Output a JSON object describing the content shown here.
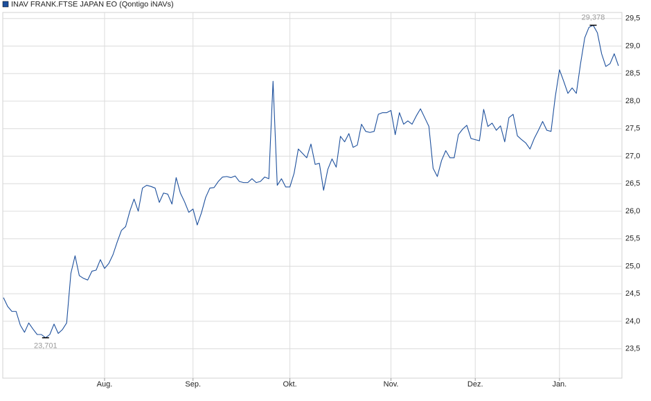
{
  "chart_data": {
    "type": "line",
    "categories": [
      null,
      null,
      null,
      null,
      null,
      null,
      null,
      null,
      null,
      null,
      null,
      null,
      null,
      null,
      null,
      null,
      null,
      null,
      null,
      null,
      null,
      null,
      null,
      null,
      "Aug.",
      null,
      null,
      null,
      null,
      null,
      null,
      null,
      null,
      null,
      null,
      null,
      null,
      null,
      null,
      null,
      null,
      null,
      null,
      null,
      null,
      "Sep.",
      null,
      null,
      null,
      null,
      null,
      null,
      null,
      null,
      null,
      null,
      null,
      null,
      null,
      null,
      null,
      null,
      null,
      null,
      null,
      null,
      null,
      null,
      "Okt.",
      null,
      null,
      null,
      null,
      null,
      null,
      null,
      null,
      null,
      null,
      null,
      null,
      null,
      null,
      null,
      null,
      null,
      null,
      null,
      null,
      null,
      null,
      null,
      "Nov.",
      null,
      null,
      null,
      null,
      null,
      null,
      null,
      null,
      null,
      null,
      null,
      null,
      null,
      null,
      null,
      null,
      null,
      null,
      null,
      "Dez.",
      null,
      null,
      null,
      null,
      null,
      null,
      null,
      null,
      null,
      null,
      null,
      null,
      null,
      null,
      null,
      null,
      null,
      null,
      null,
      "Jan.",
      null,
      null,
      null,
      null,
      null,
      null,
      null,
      null,
      null,
      null,
      null,
      null,
      null,
      null
    ],
    "series": [
      {
        "name": "INAV FRANK.FTSE JAPAN EO (Qontigo iNAVs)",
        "color": "#1c4f9c",
        "values": [
          24.43,
          24.27,
          24.18,
          24.18,
          23.93,
          23.8,
          23.97,
          23.86,
          23.76,
          23.76,
          23.701,
          23.76,
          23.95,
          23.78,
          23.85,
          23.97,
          24.87,
          25.19,
          24.83,
          24.78,
          24.75,
          24.91,
          24.93,
          25.12,
          24.96,
          25.05,
          25.21,
          25.44,
          25.65,
          25.72,
          26.0,
          26.22,
          26.0,
          26.42,
          26.47,
          26.45,
          26.42,
          26.16,
          26.33,
          26.31,
          26.13,
          26.61,
          26.33,
          26.17,
          25.98,
          26.04,
          25.75,
          25.97,
          26.25,
          26.42,
          26.43,
          26.54,
          26.62,
          26.63,
          26.61,
          26.64,
          26.54,
          26.52,
          26.52,
          26.59,
          26.52,
          26.54,
          26.62,
          26.59,
          28.36,
          26.47,
          26.59,
          26.44,
          26.44,
          26.69,
          27.13,
          27.05,
          26.97,
          27.22,
          26.85,
          26.87,
          26.38,
          26.76,
          26.95,
          26.8,
          27.36,
          27.26,
          27.41,
          27.16,
          27.2,
          27.58,
          27.45,
          27.43,
          27.45,
          27.76,
          27.79,
          27.79,
          27.83,
          27.39,
          27.79,
          27.58,
          27.64,
          27.58,
          27.73,
          27.86,
          27.7,
          27.54,
          26.78,
          26.63,
          26.92,
          27.1,
          26.97,
          26.97,
          27.39,
          27.49,
          27.56,
          27.32,
          27.3,
          27.28,
          27.85,
          27.54,
          27.6,
          27.47,
          27.55,
          27.26,
          27.7,
          27.76,
          27.37,
          27.3,
          27.24,
          27.13,
          27.32,
          27.47,
          27.63,
          27.47,
          27.45,
          28.08,
          28.57,
          28.36,
          28.14,
          28.24,
          28.14,
          28.68,
          29.15,
          29.34,
          29.378,
          29.24,
          28.86,
          28.63,
          28.68,
          28.86,
          28.64
        ],
        "value_labels": [
          null,
          null,
          null,
          null,
          null,
          null,
          null,
          null,
          null,
          null,
          "23,701",
          null,
          null,
          null,
          null,
          null,
          null,
          null,
          null,
          null,
          null,
          null,
          null,
          null,
          null,
          null,
          null,
          null,
          null,
          null,
          null,
          null,
          null,
          null,
          null,
          null,
          null,
          null,
          null,
          null,
          null,
          null,
          null,
          null,
          null,
          null,
          null,
          null,
          null,
          null,
          null,
          null,
          null,
          null,
          null,
          null,
          null,
          null,
          null,
          null,
          null,
          null,
          null,
          null,
          null,
          null,
          null,
          null,
          null,
          null,
          null,
          null,
          null,
          null,
          null,
          null,
          null,
          null,
          null,
          null,
          null,
          null,
          null,
          null,
          null,
          null,
          null,
          null,
          null,
          null,
          null,
          null,
          null,
          null,
          null,
          null,
          null,
          null,
          null,
          null,
          null,
          null,
          null,
          null,
          null,
          null,
          null,
          null,
          null,
          null,
          null,
          null,
          null,
          null,
          null,
          null,
          null,
          null,
          null,
          null,
          null,
          null,
          null,
          null,
          null,
          null,
          null,
          null,
          null,
          null,
          null,
          null,
          null,
          null,
          null,
          null,
          null,
          null,
          null,
          null,
          "29,378",
          null,
          null,
          null,
          null,
          null,
          null
        ]
      }
    ],
    "ylim": [
      22.98,
      29.61
    ],
    "yticks": [
      {
        "value": 23.5,
        "label": "23,5"
      },
      {
        "value": 24.0,
        "label": "24,0"
      },
      {
        "value": 24.5,
        "label": "24,5"
      },
      {
        "value": 25.0,
        "label": "25,0"
      },
      {
        "value": 25.5,
        "label": "25,5"
      },
      {
        "value": 26.0,
        "label": "26,0"
      },
      {
        "value": 26.5,
        "label": "26,5"
      },
      {
        "value": 27.0,
        "label": "27,0"
      },
      {
        "value": 27.5,
        "label": "27,5"
      },
      {
        "value": 28.0,
        "label": "28,0"
      },
      {
        "value": 28.5,
        "label": "28,5"
      },
      {
        "value": 29.0,
        "label": "29,0"
      },
      {
        "value": 29.5,
        "label": "29,5"
      }
    ],
    "grid": true,
    "legend": "top-left"
  }
}
